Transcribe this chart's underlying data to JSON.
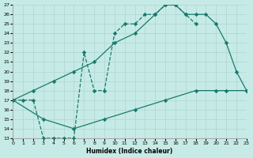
{
  "xlabel": "Humidex (Indice chaleur)",
  "bg_color": "#c6ebe6",
  "line_color": "#1a7a6e",
  "grid_color": "#b0d5d0",
  "xlim": [
    0,
    23
  ],
  "ylim": [
    13,
    27
  ],
  "xticks": [
    0,
    1,
    2,
    3,
    4,
    5,
    6,
    7,
    8,
    9,
    10,
    11,
    12,
    13,
    14,
    15,
    16,
    17,
    18,
    19,
    20,
    21,
    22,
    23
  ],
  "yticks": [
    13,
    14,
    15,
    16,
    17,
    18,
    19,
    20,
    21,
    22,
    23,
    24,
    25,
    26,
    27
  ],
  "line_dotted": {
    "x": [
      0,
      1,
      2,
      3,
      4,
      5,
      6,
      7,
      8,
      9,
      10,
      11,
      12,
      13,
      14,
      15,
      16,
      17,
      18
    ],
    "y": [
      17,
      17,
      17,
      13,
      13,
      13,
      13,
      22,
      18,
      18,
      24,
      25,
      25,
      26,
      26,
      27,
      27,
      26,
      25
    ]
  },
  "line_mid": {
    "x": [
      0,
      2,
      4,
      6,
      8,
      10,
      12,
      14,
      15,
      16,
      17,
      18,
      19,
      20,
      21,
      22,
      23
    ],
    "y": [
      17,
      18,
      19,
      20,
      21,
      23,
      24,
      26,
      27,
      27,
      26,
      26,
      26,
      25,
      23,
      20,
      18
    ]
  },
  "line_bottom": {
    "x": [
      0,
      3,
      6,
      9,
      12,
      15,
      18,
      20,
      21,
      23
    ],
    "y": [
      17,
      15,
      14,
      15,
      16,
      17,
      18,
      18,
      18,
      18
    ]
  }
}
